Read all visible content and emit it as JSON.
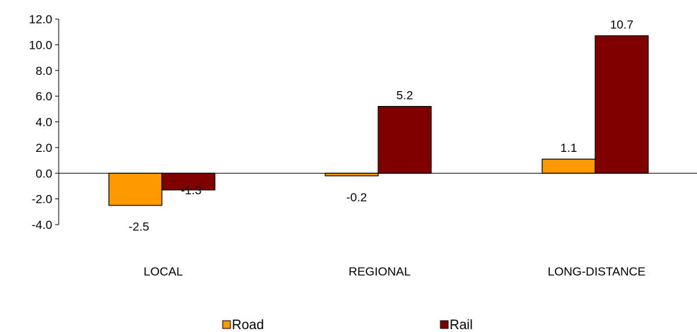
{
  "chart_data": {
    "type": "bar",
    "categories": [
      "LOCAL",
      "REGIONAL",
      "LONG-DISTANCE"
    ],
    "series": [
      {
        "name": "Road",
        "values": [
          -2.5,
          -0.2,
          1.1
        ],
        "color": "#ff9900"
      },
      {
        "name": "Rail",
        "values": [
          -1.3,
          5.2,
          10.7
        ],
        "color": "#800000"
      }
    ],
    "data_labels": [
      [
        "-2.5",
        "-0.2",
        "1.1"
      ],
      [
        "-1.3",
        "5.2",
        "10.7"
      ]
    ],
    "ylim": [
      -4.0,
      12.0
    ],
    "yticks": [
      "12.0",
      "10.0",
      "8.0",
      "6.0",
      "4.0",
      "2.0",
      "0.0",
      "-2.0",
      "-4.0"
    ],
    "ytick_values": [
      12,
      10,
      8,
      6,
      4,
      2,
      0,
      -2,
      -4
    ],
    "grid": false,
    "legend": "bottom"
  }
}
